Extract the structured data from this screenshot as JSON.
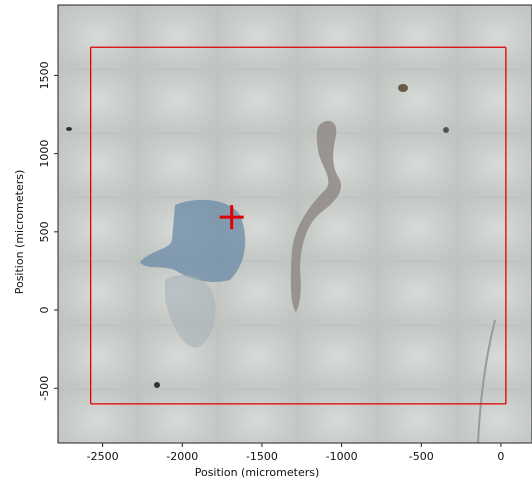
{
  "chart_data": {
    "type": "image",
    "xlabel": "Position (micrometers)",
    "ylabel": "Position (micrometers)",
    "xlim": [
      -2780,
      195
    ],
    "ylim": [
      -850,
      1950
    ],
    "xticks": [
      -2500,
      -2000,
      -1500,
      -1000,
      -500,
      0
    ],
    "yticks": [
      -500,
      0,
      500,
      1000,
      1500
    ],
    "region": {
      "x": [
        -2575,
        31
      ],
      "y": [
        -600,
        1680
      ],
      "color": "#e00000"
    },
    "marker": {
      "x": -1690,
      "y": 594,
      "color": "#e00000"
    }
  }
}
